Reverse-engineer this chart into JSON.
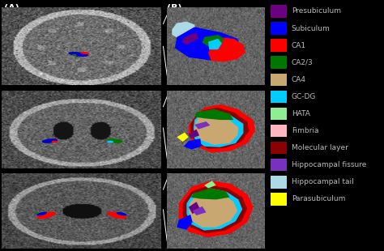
{
  "background_color": "#000000",
  "label_A": "(A)",
  "label_B": "(B)",
  "legend_items": [
    {
      "label": "Presubiculum",
      "color": "#6B0080"
    },
    {
      "label": "Subiculum",
      "color": "#0000FF"
    },
    {
      "label": "CA1",
      "color": "#FF0000"
    },
    {
      "label": "CA2/3",
      "color": "#007700"
    },
    {
      "label": "CA4",
      "color": "#C8A870"
    },
    {
      "label": "GC-DG",
      "color": "#00CCFF"
    },
    {
      "label": "HATA",
      "color": "#90EE90"
    },
    {
      "label": "Fimbria",
      "color": "#FFB6C1"
    },
    {
      "label": "Molecular layer",
      "color": "#8B0000"
    },
    {
      "label": "Hippocampal fissure",
      "color": "#7B2FBE"
    },
    {
      "label": "Hippocampal tail",
      "color": "#ADD8E6"
    },
    {
      "label": "Parasubiculum",
      "color": "#FFFF00"
    }
  ],
  "text_color": "#BBBBBB",
  "font_size": 6.5
}
